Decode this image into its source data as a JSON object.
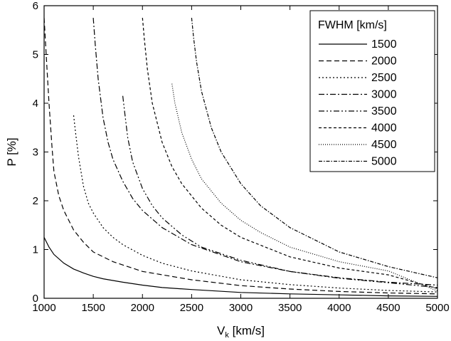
{
  "chart_data": {
    "type": "line",
    "title": "",
    "xlabel": "V",
    "xlabel_sub": "k",
    "xlabel_unit": " [km/s]",
    "ylabel": "P [%]",
    "xlim": [
      1000,
      5000
    ],
    "ylim": [
      0,
      6
    ],
    "x_ticks": [
      1000,
      1500,
      2000,
      2500,
      3000,
      3500,
      4000,
      4500,
      5000
    ],
    "y_ticks": [
      0,
      1,
      2,
      3,
      4,
      5,
      6
    ],
    "grid": false,
    "legend": {
      "title": "FWHM [km/s]",
      "position": "top-right"
    },
    "series": [
      {
        "name": "1500",
        "style": "solid",
        "points": [
          [
            1000,
            1.25
          ],
          [
            1050,
            1.05
          ],
          [
            1100,
            0.9
          ],
          [
            1200,
            0.72
          ],
          [
            1300,
            0.6
          ],
          [
            1400,
            0.52
          ],
          [
            1500,
            0.45
          ],
          [
            1600,
            0.4
          ],
          [
            1800,
            0.33
          ],
          [
            2000,
            0.27
          ],
          [
            2200,
            0.22
          ],
          [
            2500,
            0.18
          ],
          [
            3000,
            0.12
          ],
          [
            3500,
            0.09
          ],
          [
            4000,
            0.07
          ],
          [
            4500,
            0.05
          ],
          [
            5000,
            0.04
          ]
        ]
      },
      {
        "name": "2000",
        "style": "dashed",
        "points": [
          [
            1000,
            5.75
          ],
          [
            1030,
            4.7
          ],
          [
            1050,
            4.0
          ],
          [
            1080,
            3.1
          ],
          [
            1100,
            2.6
          ],
          [
            1150,
            2.1
          ],
          [
            1200,
            1.8
          ],
          [
            1300,
            1.4
          ],
          [
            1400,
            1.15
          ],
          [
            1500,
            0.95
          ],
          [
            1700,
            0.75
          ],
          [
            2000,
            0.55
          ],
          [
            2500,
            0.38
          ],
          [
            3000,
            0.26
          ],
          [
            3500,
            0.19
          ],
          [
            4000,
            0.14
          ],
          [
            4500,
            0.11
          ],
          [
            5000,
            0.09
          ]
        ]
      },
      {
        "name": "2500",
        "style": "dotted",
        "points": [
          [
            1300,
            3.75
          ],
          [
            1320,
            3.4
          ],
          [
            1350,
            2.9
          ],
          [
            1400,
            2.3
          ],
          [
            1450,
            1.95
          ],
          [
            1500,
            1.75
          ],
          [
            1600,
            1.45
          ],
          [
            1700,
            1.25
          ],
          [
            1800,
            1.1
          ],
          [
            2000,
            0.88
          ],
          [
            2200,
            0.72
          ],
          [
            2500,
            0.56
          ],
          [
            3000,
            0.38
          ],
          [
            3500,
            0.28
          ],
          [
            4000,
            0.21
          ],
          [
            4500,
            0.16
          ],
          [
            5000,
            0.13
          ]
        ]
      },
      {
        "name": "3000",
        "style": "dashdot",
        "points": [
          [
            1500,
            5.75
          ],
          [
            1520,
            5.2
          ],
          [
            1550,
            4.5
          ],
          [
            1600,
            3.7
          ],
          [
            1650,
            3.2
          ],
          [
            1700,
            2.85
          ],
          [
            1800,
            2.4
          ],
          [
            1900,
            2.05
          ],
          [
            2000,
            1.8
          ],
          [
            2200,
            1.45
          ],
          [
            2500,
            1.1
          ],
          [
            3000,
            0.75
          ],
          [
            3500,
            0.55
          ],
          [
            4000,
            0.42
          ],
          [
            4500,
            0.33
          ],
          [
            5000,
            0.27
          ]
        ]
      },
      {
        "name": "3500",
        "style": "dashdotdot",
        "points": [
          [
            1800,
            4.15
          ],
          [
            1820,
            3.8
          ],
          [
            1850,
            3.3
          ],
          [
            1900,
            2.8
          ],
          [
            2000,
            2.25
          ],
          [
            2100,
            1.9
          ],
          [
            2200,
            1.65
          ],
          [
            2400,
            1.3
          ],
          [
            2600,
            1.05
          ],
          [
            3000,
            0.78
          ],
          [
            3500,
            0.55
          ],
          [
            4000,
            0.41
          ],
          [
            4500,
            0.32
          ],
          [
            5000,
            0.22
          ]
        ]
      },
      {
        "name": "4000",
        "style": "shortdash",
        "points": [
          [
            2000,
            5.75
          ],
          [
            2020,
            5.3
          ],
          [
            2050,
            4.7
          ],
          [
            2100,
            4.0
          ],
          [
            2200,
            3.2
          ],
          [
            2300,
            2.7
          ],
          [
            2400,
            2.35
          ],
          [
            2600,
            1.85
          ],
          [
            2800,
            1.5
          ],
          [
            3000,
            1.25
          ],
          [
            3500,
            0.85
          ],
          [
            4000,
            0.62
          ],
          [
            4500,
            0.48
          ],
          [
            5000,
            0.2
          ]
        ]
      },
      {
        "name": "4500",
        "style": "finedot",
        "points": [
          [
            2300,
            4.4
          ],
          [
            2330,
            4.0
          ],
          [
            2400,
            3.4
          ],
          [
            2500,
            2.85
          ],
          [
            2600,
            2.45
          ],
          [
            2800,
            1.95
          ],
          [
            3000,
            1.6
          ],
          [
            3200,
            1.35
          ],
          [
            3500,
            1.05
          ],
          [
            4000,
            0.75
          ],
          [
            4500,
            0.56
          ],
          [
            5000,
            0.15
          ]
        ]
      },
      {
        "name": "5000",
        "style": "dashdotdense",
        "points": [
          [
            2500,
            5.75
          ],
          [
            2520,
            5.35
          ],
          [
            2550,
            4.85
          ],
          [
            2600,
            4.25
          ],
          [
            2700,
            3.5
          ],
          [
            2800,
            3.0
          ],
          [
            3000,
            2.35
          ],
          [
            3200,
            1.9
          ],
          [
            3500,
            1.45
          ],
          [
            4000,
            0.95
          ],
          [
            4500,
            0.65
          ],
          [
            5000,
            0.42
          ]
        ]
      }
    ]
  }
}
